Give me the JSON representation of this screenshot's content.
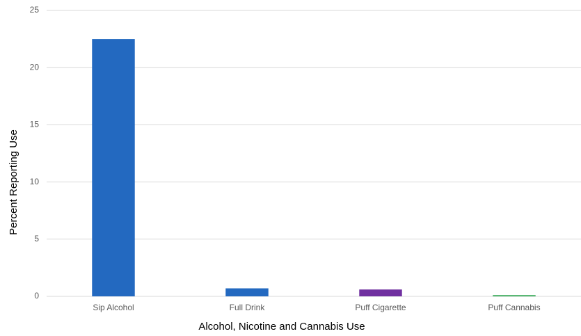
{
  "chart_data": {
    "type": "bar",
    "x_label": "Alcohol, Nicotine and Cannabis Use",
    "y_label": "Percent Reporting Use",
    "categories": [
      "Sip Alcohol",
      "Full Drink",
      "Puff Cigarette",
      "Puff Cannabis"
    ],
    "values": [
      22.5,
      0.7,
      0.6,
      0.1
    ],
    "colors": [
      "#2369c0",
      "#2369c0",
      "#7030a0",
      "#22a046"
    ],
    "ylim": [
      0,
      25
    ],
    "yticks": [
      0,
      5,
      10,
      15,
      20,
      25
    ],
    "grid": true
  }
}
